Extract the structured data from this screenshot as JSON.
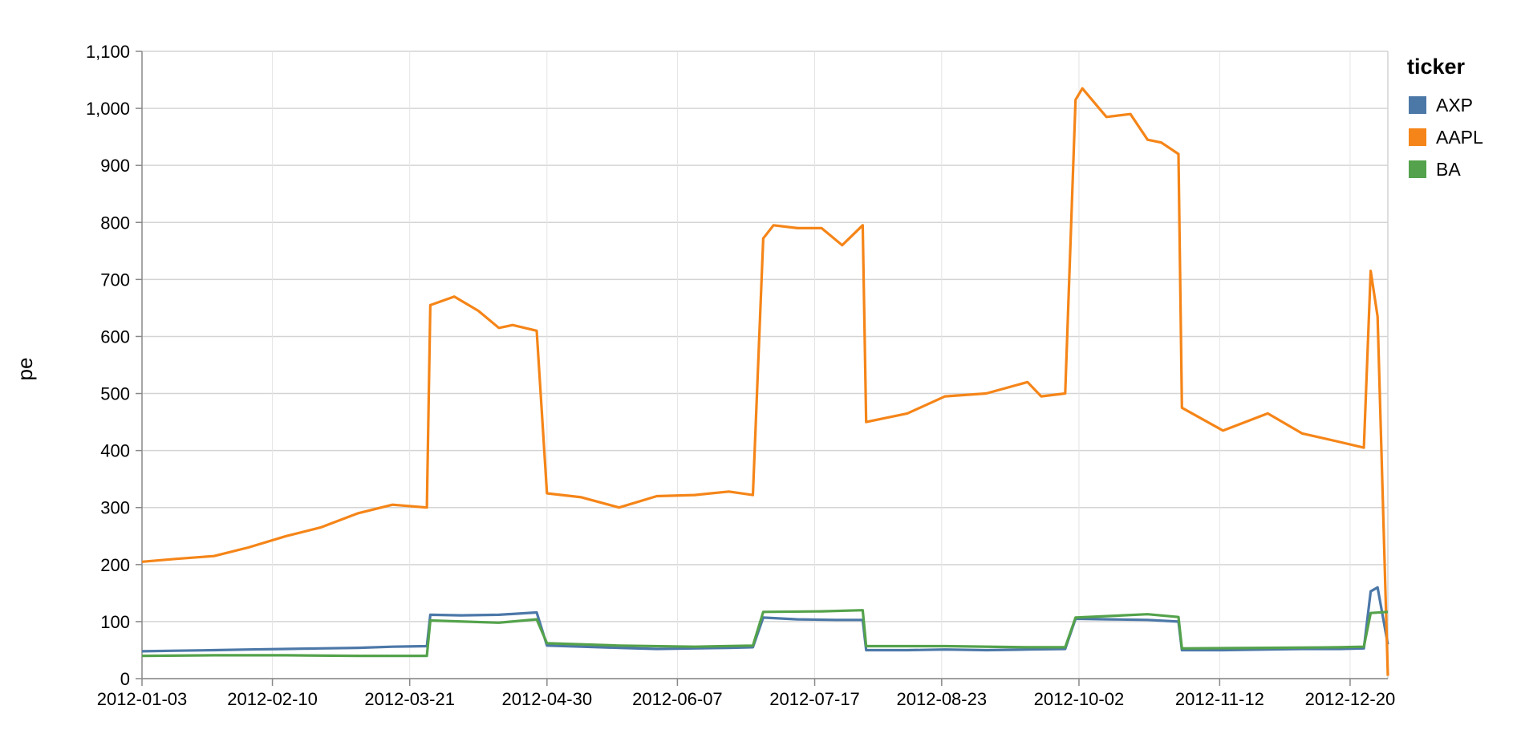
{
  "chart_data": {
    "type": "line",
    "xlabel": "",
    "ylabel": "pe",
    "ylim": [
      0,
      1100
    ],
    "y_ticks": [
      0,
      100,
      200,
      300,
      400,
      500,
      600,
      700,
      800,
      900,
      1000,
      1100
    ],
    "y_tick_labels": [
      "0",
      "100",
      "200",
      "300",
      "400",
      "500",
      "600",
      "700",
      "800",
      "900",
      "1,000",
      "1,100"
    ],
    "x_tick_labels": [
      "2012-01-03",
      "2012-02-10",
      "2012-03-21",
      "2012-04-30",
      "2012-06-07",
      "2012-07-17",
      "2012-08-23",
      "2012-10-02",
      "2012-11-12",
      "2012-12-20"
    ],
    "x_range": [
      "2012-01-03",
      "2012-12-31"
    ],
    "grid": true,
    "legend": {
      "title": "ticker",
      "position": "right",
      "items": [
        {
          "label": "AXP",
          "color": "#4c78a8"
        },
        {
          "label": "AAPL",
          "color": "#f58518"
        },
        {
          "label": "BA",
          "color": "#54a24b"
        }
      ]
    },
    "series": [
      {
        "name": "AXP",
        "color": "#4c78a8",
        "x": [
          "2012-01-03",
          "2012-01-13",
          "2012-01-24",
          "2012-02-03",
          "2012-02-14",
          "2012-02-24",
          "2012-03-06",
          "2012-03-16",
          "2012-03-26",
          "2012-03-27",
          "2012-04-05",
          "2012-04-16",
          "2012-04-27",
          "2012-04-30",
          "2012-05-10",
          "2012-05-21",
          "2012-06-01",
          "2012-06-12",
          "2012-06-22",
          "2012-06-29",
          "2012-07-02",
          "2012-07-12",
          "2012-07-23",
          "2012-07-31",
          "2012-08-01",
          "2012-08-13",
          "2012-08-24",
          "2012-09-05",
          "2012-09-17",
          "2012-09-28",
          "2012-10-01",
          "2012-10-11",
          "2012-10-22",
          "2012-10-31",
          "2012-11-01",
          "2012-11-13",
          "2012-11-26",
          "2012-12-06",
          "2012-12-17",
          "2012-12-24",
          "2012-12-26",
          "2012-12-28",
          "2012-12-31"
        ],
        "values": [
          48,
          49,
          50,
          51,
          52,
          53,
          54,
          56,
          57,
          112,
          111,
          112,
          116,
          58,
          56,
          54,
          52,
          53,
          54,
          55,
          107,
          104,
          103,
          103,
          50,
          50,
          51,
          50,
          51,
          52,
          105,
          104,
          103,
          100,
          50,
          50,
          51,
          52,
          52,
          53,
          153,
          160,
          60
        ]
      },
      {
        "name": "AAPL",
        "color": "#f58518",
        "x": [
          "2012-01-03",
          "2012-01-13",
          "2012-01-24",
          "2012-02-03",
          "2012-02-14",
          "2012-02-24",
          "2012-03-06",
          "2012-03-16",
          "2012-03-26",
          "2012-03-27",
          "2012-04-03",
          "2012-04-10",
          "2012-04-16",
          "2012-04-20",
          "2012-04-27",
          "2012-04-30",
          "2012-05-10",
          "2012-05-21",
          "2012-06-01",
          "2012-06-12",
          "2012-06-22",
          "2012-06-29",
          "2012-07-02",
          "2012-07-05",
          "2012-07-12",
          "2012-07-19",
          "2012-07-25",
          "2012-07-31",
          "2012-08-01",
          "2012-08-13",
          "2012-08-24",
          "2012-09-05",
          "2012-09-17",
          "2012-09-21",
          "2012-09-28",
          "2012-10-01",
          "2012-10-03",
          "2012-10-10",
          "2012-10-17",
          "2012-10-22",
          "2012-10-26",
          "2012-10-31",
          "2012-11-01",
          "2012-11-13",
          "2012-11-26",
          "2012-12-06",
          "2012-12-17",
          "2012-12-24",
          "2012-12-26",
          "2012-12-28",
          "2012-12-31"
        ],
        "values": [
          205,
          210,
          215,
          230,
          250,
          265,
          290,
          305,
          300,
          655,
          670,
          645,
          615,
          620,
          610,
          325,
          318,
          300,
          320,
          322,
          328,
          322,
          772,
          795,
          790,
          790,
          760,
          795,
          450,
          465,
          495,
          500,
          520,
          495,
          500,
          1015,
          1035,
          985,
          990,
          945,
          940,
          920,
          475,
          435,
          465,
          430,
          415,
          405,
          715,
          635,
          5
        ]
      },
      {
        "name": "BA",
        "color": "#54a24b",
        "x": [
          "2012-01-03",
          "2012-01-24",
          "2012-02-14",
          "2012-03-06",
          "2012-03-26",
          "2012-03-27",
          "2012-04-16",
          "2012-04-27",
          "2012-04-30",
          "2012-05-21",
          "2012-06-12",
          "2012-06-29",
          "2012-07-02",
          "2012-07-19",
          "2012-07-31",
          "2012-08-01",
          "2012-08-24",
          "2012-09-17",
          "2012-09-28",
          "2012-10-01",
          "2012-10-22",
          "2012-10-31",
          "2012-11-01",
          "2012-11-26",
          "2012-12-17",
          "2012-12-24",
          "2012-12-26",
          "2012-12-31"
        ],
        "values": [
          40,
          41,
          41,
          40,
          40,
          102,
          98,
          104,
          62,
          58,
          56,
          58,
          117,
          118,
          120,
          57,
          57,
          55,
          55,
          107,
          113,
          108,
          53,
          54,
          55,
          56,
          115,
          117
        ]
      }
    ]
  }
}
